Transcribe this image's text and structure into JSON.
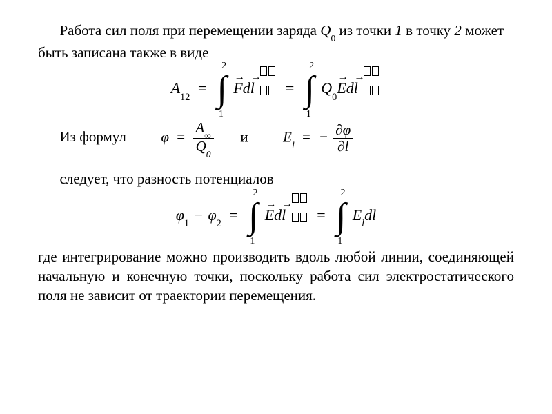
{
  "colors": {
    "text": "#000000",
    "background": "#ffffff"
  },
  "typography": {
    "font_family": "Times New Roman",
    "body_fontsize_pt": 16
  },
  "text": {
    "p1_part1": "Работа сил поля при перемещении заряда ",
    "p1_Q": "Q",
    "p1_Q_sub": "0",
    "p1_part2": " из точки ",
    "p1_pt1": "1",
    "p1_part3": " в точку ",
    "p1_pt2": "2",
    "p1_part4": " может быть записана также в виде",
    "p2_part1": "Из формул",
    "p2_and": "и",
    "p3": "следует, что разность потенциалов",
    "p4": "где интегрирование можно производить вдоль любой линии, соединяющей начальную и конечную точки, поскольку работа сил электростатического поля не зависит от траектории перемещения."
  },
  "equations": {
    "eq1": {
      "lhs_A": "A",
      "lhs_sub": "12",
      "int_top": "2",
      "int_bot": "1",
      "Fdl_F": "F",
      "Fdl_d": "d",
      "Fdl_l": "l",
      "Q": "Q",
      "Q_sub": "0",
      "E": "E"
    },
    "phi_def": {
      "phi": "φ",
      "num_A": "A",
      "num_sub": "∞",
      "den_Q": "Q",
      "den_sub": "0"
    },
    "El_def": {
      "E": "E",
      "E_sub": "l",
      "partial": "∂",
      "phi": "φ",
      "l": "l"
    },
    "eq2": {
      "phi": "φ",
      "sub1": "1",
      "sub2": "2",
      "int_top": "2",
      "int_bot": "1",
      "E": "E",
      "d": "d",
      "l": "l",
      "E2_sub": "l"
    }
  }
}
